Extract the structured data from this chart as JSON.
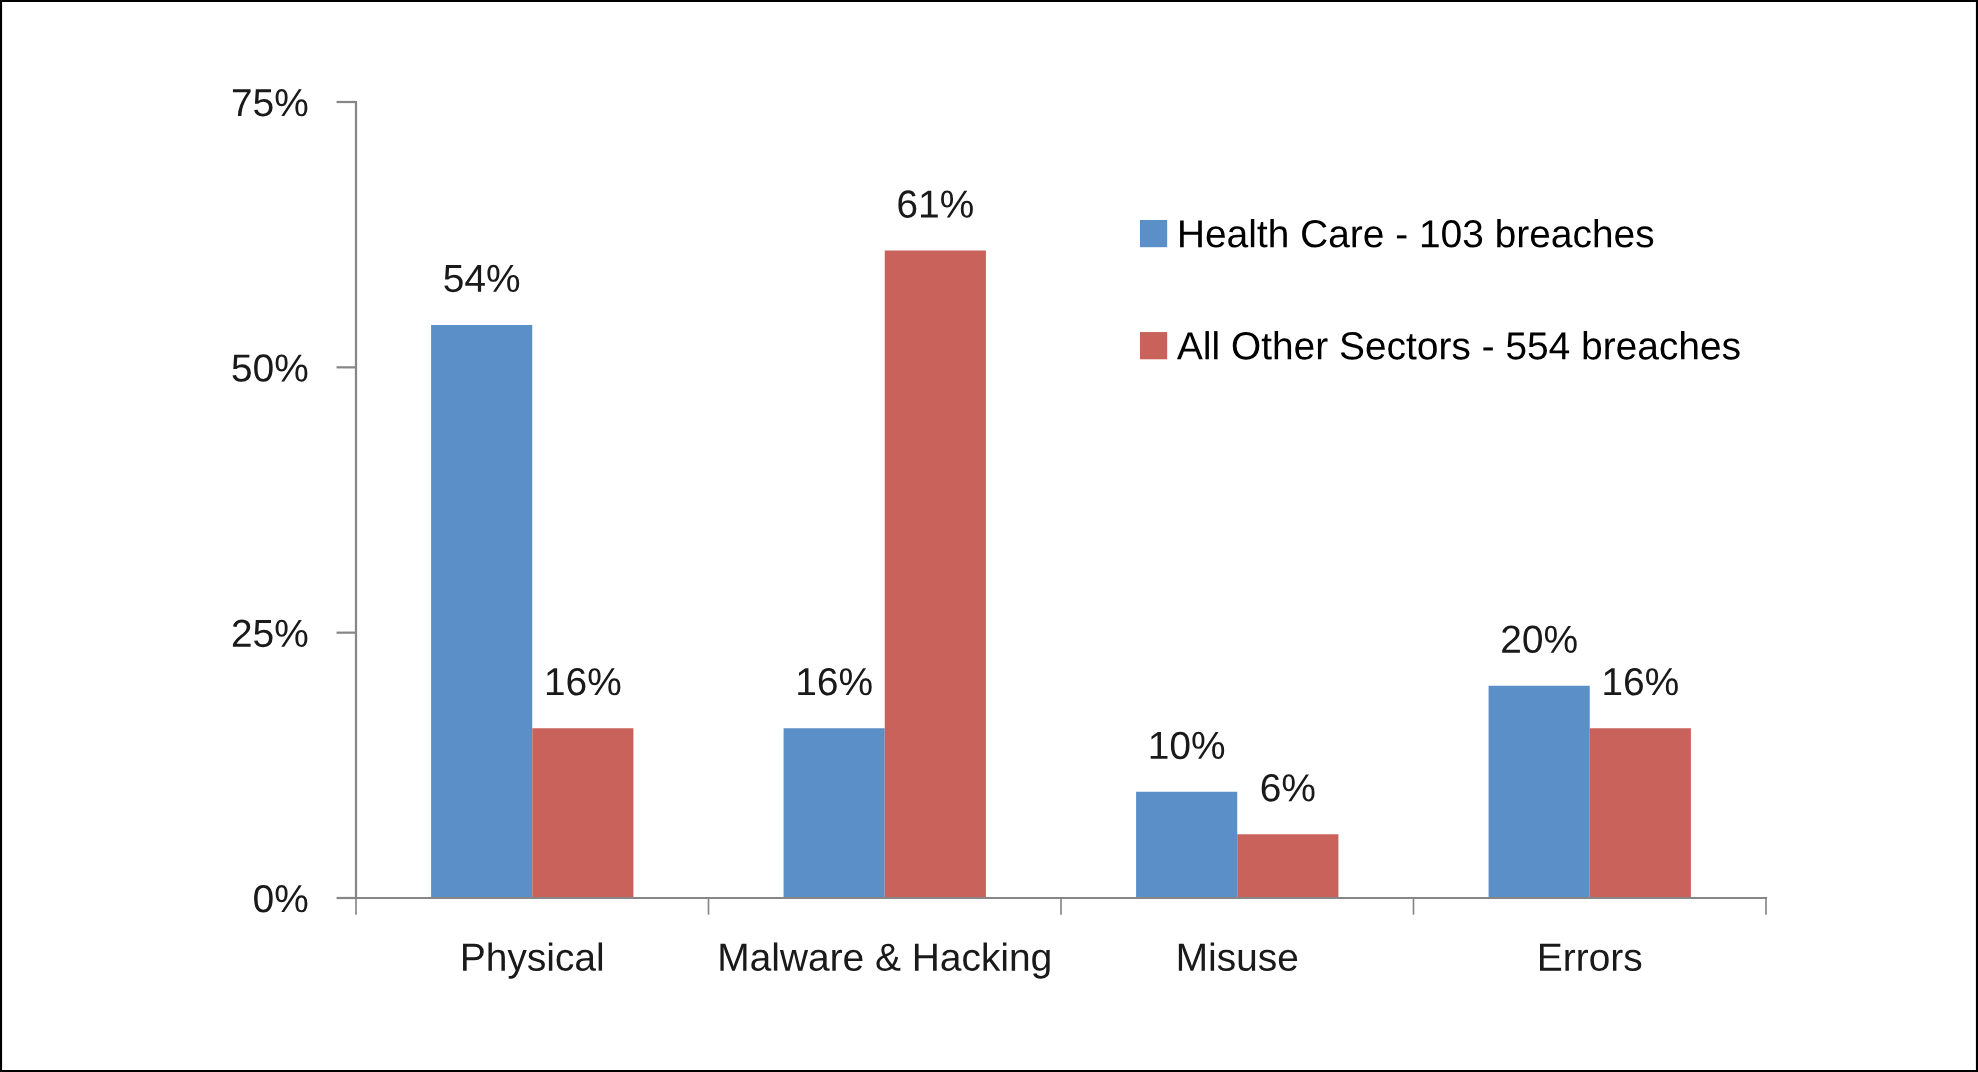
{
  "chart_data": {
    "type": "bar",
    "categories": [
      "Physical",
      "Malware & Hacking",
      "Misuse",
      "Errors"
    ],
    "series": [
      {
        "name": "Health Care - 103 breaches",
        "color": "#5b8fc8",
        "values": [
          54,
          16,
          10,
          20
        ],
        "value_labels": [
          "54%",
          "16%",
          "10%",
          "20%"
        ]
      },
      {
        "name": "All Other Sectors - 554 breaches",
        "color": "#c9625b",
        "values": [
          16,
          61,
          6,
          16
        ],
        "value_labels": [
          "16%",
          "61%",
          "6%",
          "16%"
        ]
      }
    ],
    "ylim": [
      0,
      75
    ],
    "yticks": [
      {
        "value": 0,
        "label": "0%"
      },
      {
        "value": 25,
        "label": "25%"
      },
      {
        "value": 50,
        "label": "50%"
      },
      {
        "value": 75,
        "label": "75%"
      }
    ],
    "legend": "top right",
    "grid": false
  }
}
